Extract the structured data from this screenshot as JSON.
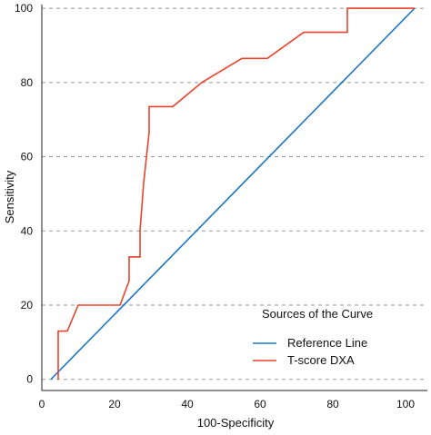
{
  "chart_data": {
    "type": "line",
    "title": "",
    "xlabel": "100-Specificity",
    "ylabel": "Sensitivity",
    "xlim": [
      0,
      106
    ],
    "ylim": [
      -3,
      101
    ],
    "x_ticks": [
      0,
      20,
      40,
      60,
      80,
      100
    ],
    "y_ticks": [
      0,
      20,
      40,
      60,
      80,
      100
    ],
    "y_gridlines": "dashed",
    "legend": {
      "title": "Sources of the Curve",
      "position": "bottom-right"
    },
    "series": [
      {
        "name": "Reference Line",
        "color": "#1f77c4",
        "points": [
          [
            2.5,
            0
          ],
          [
            102.5,
            100
          ]
        ]
      },
      {
        "name": "T-score DXA",
        "color": "#e8442b",
        "points": [
          [
            4.5,
            0
          ],
          [
            4.5,
            13
          ],
          [
            7,
            13
          ],
          [
            10,
            20
          ],
          [
            21.5,
            20
          ],
          [
            24,
            26.5
          ],
          [
            24,
            33
          ],
          [
            27,
            33
          ],
          [
            27,
            40
          ],
          [
            28,
            53
          ],
          [
            29.5,
            66.5
          ],
          [
            29.5,
            73.5
          ],
          [
            36,
            73.5
          ],
          [
            44,
            80
          ],
          [
            55,
            86.5
          ],
          [
            62,
            86.5
          ],
          [
            72,
            93.5
          ],
          [
            84,
            93.5
          ],
          [
            84,
            100
          ],
          [
            102.5,
            100
          ]
        ]
      }
    ]
  }
}
